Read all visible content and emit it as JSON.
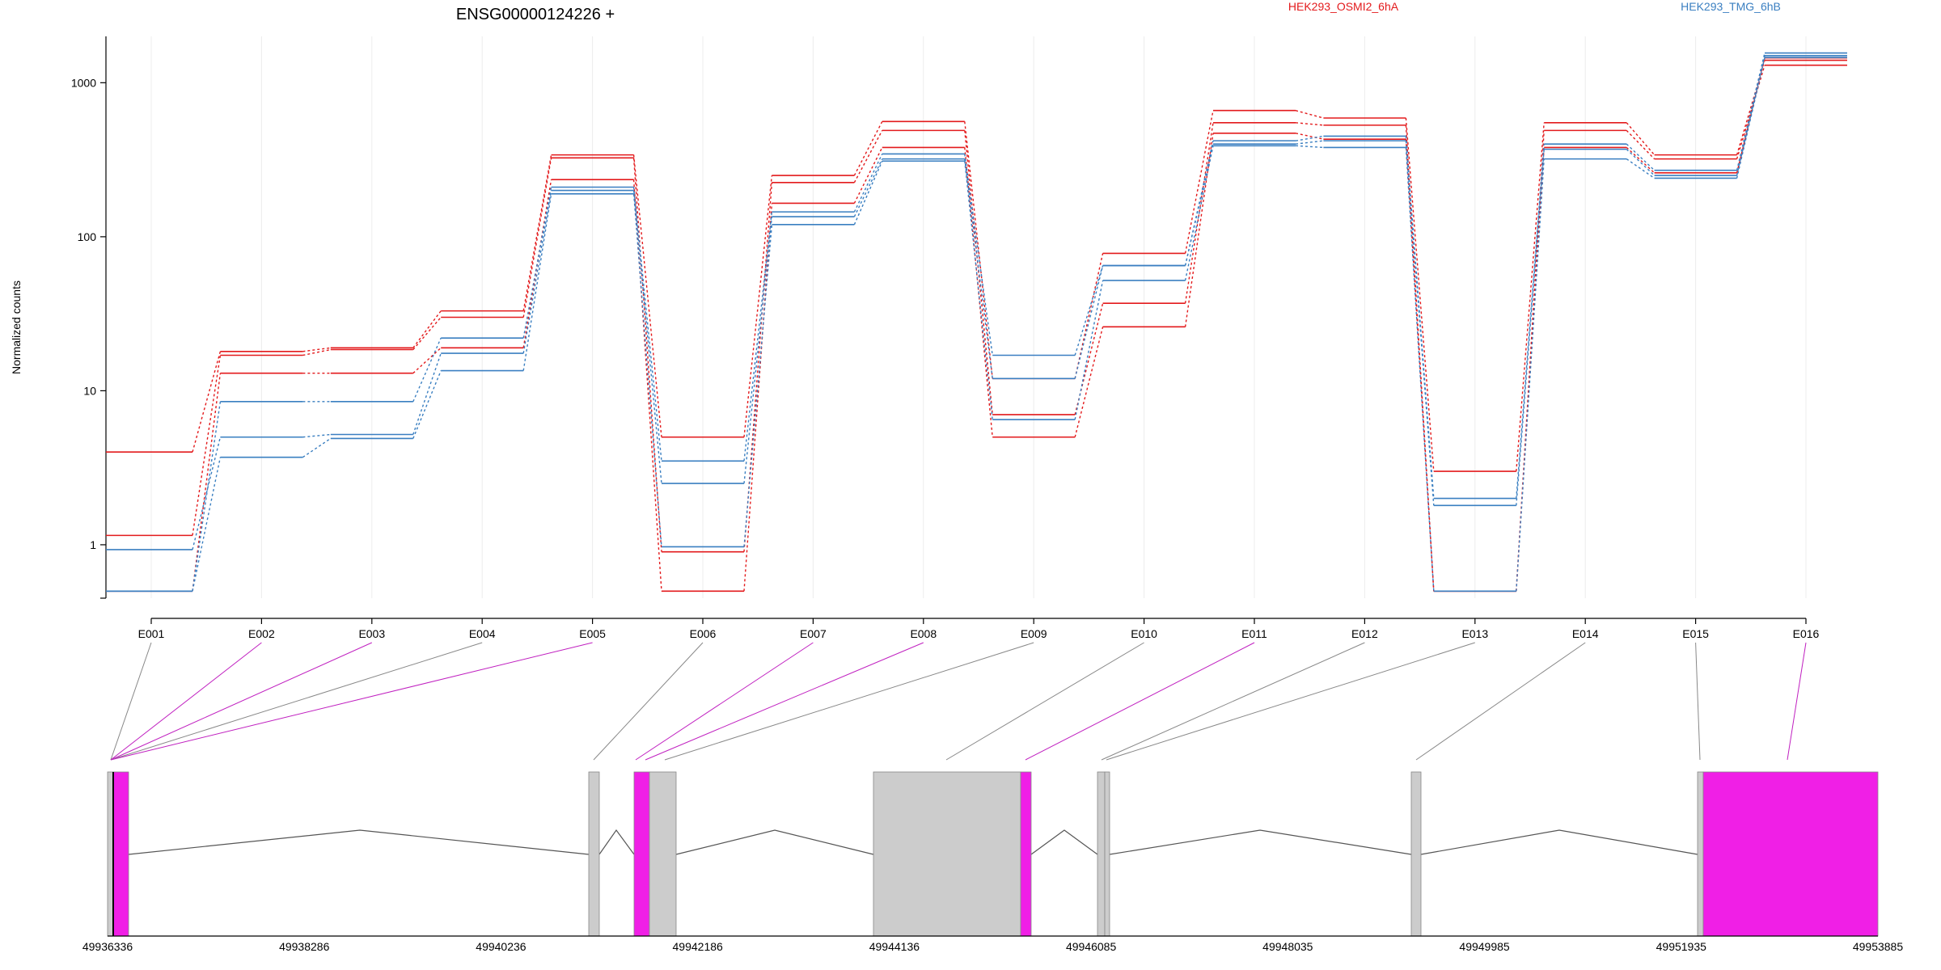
{
  "title": "ENSG00000124226 +",
  "legend": [
    {
      "name": "HEK293_OSMI2_6hA",
      "color": "#e31a1c"
    },
    {
      "name": "HEK293_TMG_6hB",
      "color": "#3a7fc1"
    }
  ],
  "chart_data": {
    "type": "line",
    "title": "ENSG00000124226 +",
    "ylabel": "Normalized counts",
    "xlabel": "",
    "yscale": "log",
    "ylim": [
      0.45,
      2000
    ],
    "yticks": [
      1,
      10,
      100,
      1000
    ],
    "categories": [
      "E001",
      "E002",
      "E003",
      "E004",
      "E005",
      "E006",
      "E007",
      "E008",
      "E009",
      "E010",
      "E011",
      "E012",
      "E013",
      "E014",
      "E015",
      "E016"
    ],
    "grid": "vertical-light",
    "legend_position": "top-right",
    "series": [
      {
        "group": "HEK293_OSMI2_6hA",
        "color": "#e31a1c",
        "values": [
          4,
          18,
          19,
          33,
          340,
          5,
          250,
          560,
          12,
          78,
          660,
          590,
          3,
          550,
          340,
          1400
        ]
      },
      {
        "group": "HEK293_OSMI2_6hA",
        "color": "#e31a1c",
        "values": [
          1.15,
          17,
          18.5,
          30,
          325,
          0.9,
          225,
          490,
          7,
          37,
          550,
          530,
          0.5,
          490,
          320,
          1300
        ]
      },
      {
        "group": "HEK293_OSMI2_6hA",
        "color": "#e31a1c",
        "values": [
          0.5,
          13,
          13,
          19,
          235,
          0.5,
          165,
          380,
          5,
          26,
          470,
          430,
          0.5,
          380,
          260,
          1450
        ]
      },
      {
        "group": "HEK293_TMG_6hB",
        "color": "#3a7fc1",
        "values": [
          0.5,
          8.5,
          8.5,
          22,
          210,
          3.5,
          145,
          345,
          17,
          65,
          420,
          450,
          2,
          400,
          270,
          1560
        ]
      },
      {
        "group": "HEK293_TMG_6hB",
        "color": "#3a7fc1",
        "values": [
          0.93,
          5,
          5.2,
          17.5,
          200,
          2.5,
          135,
          320,
          12,
          65,
          400,
          420,
          1.8,
          370,
          250,
          1500
        ]
      },
      {
        "group": "HEK293_TMG_6hB",
        "color": "#3a7fc1",
        "values": [
          0.5,
          3.7,
          4.9,
          13.5,
          190,
          0.97,
          120,
          310,
          6.5,
          52,
          390,
          380,
          0.5,
          320,
          240,
          1460
        ]
      }
    ],
    "gene_model": {
      "coordinate_labels": [
        "49936336",
        "49938286",
        "49940236",
        "49942186",
        "49944136",
        "49946085",
        "49948035",
        "49949985",
        "49951935",
        "49953885"
      ],
      "exon_colors": {
        "default": "#cccccc",
        "highlight": "#f01fe6"
      },
      "exons": [
        {
          "id": "E001",
          "highlighted": false
        },
        {
          "id": "E002",
          "highlighted": true
        },
        {
          "id": "E003",
          "highlighted": true
        },
        {
          "id": "E004",
          "highlighted": false
        },
        {
          "id": "E005",
          "highlighted": true
        },
        {
          "id": "E006",
          "highlighted": false
        },
        {
          "id": "E007",
          "highlighted": true
        },
        {
          "id": "E008",
          "highlighted": true
        },
        {
          "id": "E009",
          "highlighted": false
        },
        {
          "id": "E010",
          "highlighted": false
        },
        {
          "id": "E011",
          "highlighted": true
        },
        {
          "id": "E012",
          "highlighted": false
        },
        {
          "id": "E013",
          "highlighted": false
        },
        {
          "id": "E014",
          "highlighted": false
        },
        {
          "id": "E015",
          "highlighted": false
        },
        {
          "id": "E016",
          "highlighted": true
        }
      ]
    }
  }
}
